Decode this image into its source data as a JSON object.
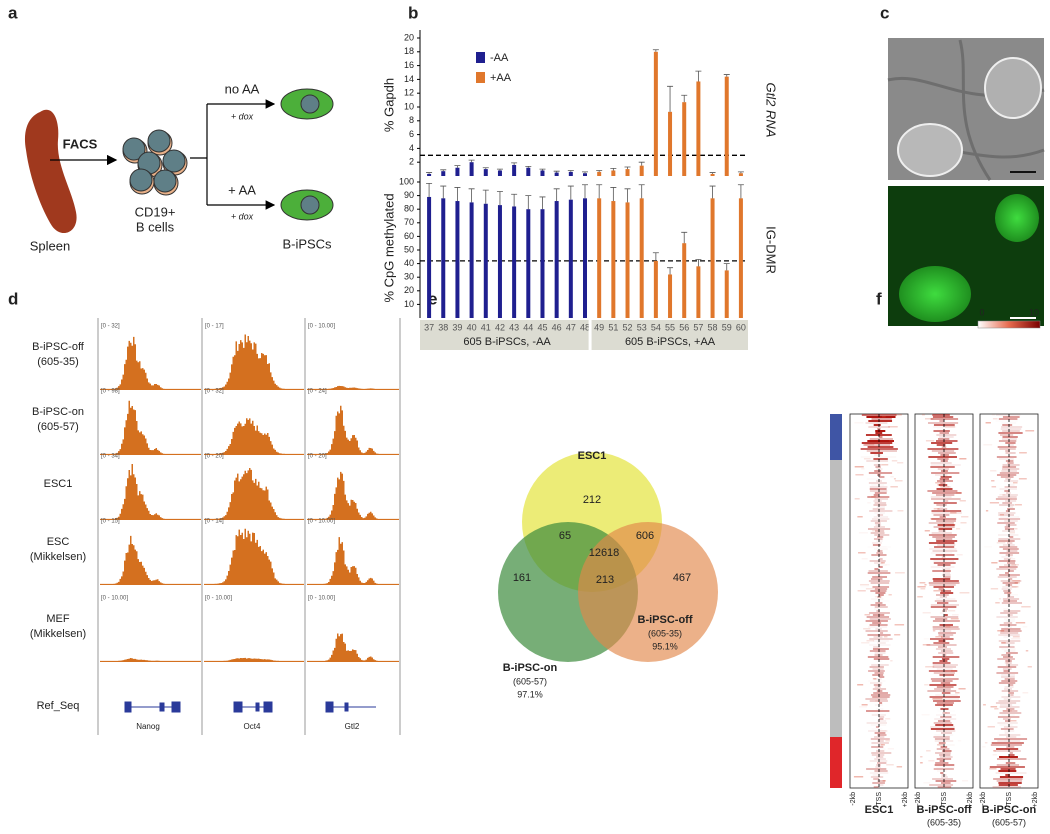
{
  "panel_labels": [
    "a",
    "b",
    "c",
    "d",
    "e",
    "f"
  ],
  "schematic": {
    "source": "Spleen",
    "sort": "FACS",
    "cells": [
      "CD19+",
      "B cells"
    ],
    "branches": [
      {
        "label": "no AA",
        "treatment": "+ dox"
      },
      {
        "label": "+ AA",
        "treatment": "+ dox"
      }
    ],
    "product": "B-iPSCs"
  },
  "chart_data": {
    "type": "bar",
    "categories": [
      "37",
      "38",
      "39",
      "40",
      "41",
      "42",
      "43",
      "44",
      "45",
      "46",
      "47",
      "48",
      "49",
      "51",
      "52",
      "53",
      "54",
      "55",
      "56",
      "57",
      "58",
      "59",
      "60"
    ],
    "series": [
      {
        "name": "-AA",
        "color": "#1f1f8f"
      },
      {
        "name": "+AA",
        "color": "#e0772c"
      }
    ],
    "groups": [
      "605 B-iPSCs, -AA",
      "605 B-iPSCs, +AA"
    ],
    "panels": [
      {
        "ylabel": "% Gapdh",
        "side_label": "Gtl2 RNA",
        "ylim": [
          0,
          20
        ],
        "yticks": [
          2,
          4,
          6,
          8,
          10,
          12,
          14,
          16,
          18,
          20
        ],
        "threshold": 3,
        "values": [
          [
            0.3,
            0.7,
            1.2,
            2.0,
            1.0,
            0.8,
            1.6,
            1.2,
            0.8,
            0.5,
            0.6,
            0.4,
            null,
            null,
            null,
            null,
            null,
            null,
            null,
            null,
            null,
            null,
            null
          ],
          [
            null,
            null,
            null,
            null,
            null,
            null,
            null,
            null,
            null,
            null,
            null,
            null,
            0.6,
            0.8,
            1.0,
            1.5,
            18.0,
            9.3,
            10.7,
            13.7,
            0.3,
            14.4,
            0.4
          ]
        ],
        "errors": [
          [
            0.2,
            0.2,
            0.3,
            0.3,
            0.2,
            0.2,
            0.3,
            0.2,
            0.2,
            0.2,
            0.2,
            0.2,
            null,
            null,
            null,
            null,
            null,
            null,
            null,
            null,
            null,
            null,
            null
          ],
          [
            null,
            null,
            null,
            null,
            null,
            null,
            null,
            null,
            null,
            null,
            null,
            null,
            0.2,
            0.3,
            0.3,
            0.5,
            0.3,
            3.7,
            1.0,
            1.5,
            0.2,
            0.3,
            0.2
          ]
        ]
      },
      {
        "ylabel": "% CpG methylated",
        "side_label": "IG-DMR",
        "ylim": [
          0,
          100
        ],
        "yticks": [
          10,
          20,
          30,
          40,
          50,
          60,
          70,
          80,
          90,
          100
        ],
        "threshold": 42,
        "values": [
          [
            89,
            88,
            86,
            85,
            84,
            83,
            82,
            80,
            80,
            86,
            87,
            88,
            null,
            null,
            null,
            null,
            null,
            null,
            null,
            null,
            null,
            null,
            null
          ],
          [
            null,
            null,
            null,
            null,
            null,
            null,
            null,
            null,
            null,
            null,
            null,
            null,
            88,
            86,
            85,
            88,
            42,
            32,
            55,
            38,
            88,
            35,
            88
          ]
        ],
        "errors": [
          [
            10,
            9,
            10,
            10,
            10,
            10,
            9,
            10,
            9,
            9,
            10,
            10,
            null,
            null,
            null,
            null,
            null,
            null,
            null,
            null,
            null,
            null,
            null
          ],
          [
            null,
            null,
            null,
            null,
            null,
            null,
            null,
            null,
            null,
            null,
            null,
            null,
            10,
            10,
            10,
            10,
            6,
            5,
            8,
            5,
            9,
            5,
            10
          ]
        ]
      }
    ]
  },
  "tracks": {
    "samples": [
      {
        "name": "B-iPSC-off",
        "detail": "(605-35)",
        "ranges": [
          "[0 - 32]",
          "[0 - 17]",
          "[0 - 10.00]"
        ]
      },
      {
        "name": "B-iPSC-on",
        "detail": "(605-57)",
        "ranges": [
          "[0 - 98]",
          "[0 - 32]",
          "[0 - 24]"
        ]
      },
      {
        "name": "ESC1",
        "ranges": [
          "[0 - 34]",
          "[0 - 20]",
          "[0 - 20]"
        ]
      },
      {
        "name": "ESC",
        "detail": "(Mikkelsen)",
        "ranges": [
          "[0 - 15]",
          "[0 - 14]",
          "[0 - 10.00]"
        ]
      },
      {
        "name": "MEF",
        "detail": "(Mikkelsen)",
        "ranges": [
          "[0 - 10.00]",
          "[0 - 10.00]",
          "[0 - 10.00]"
        ]
      }
    ],
    "ref_label": "Ref_Seq",
    "genes": [
      "Nanog",
      "Oct4",
      "Gtl2"
    ]
  },
  "venn": {
    "sets": [
      {
        "name": "ESC1"
      },
      {
        "name": "B-iPSC-on",
        "detail": "(605-57)",
        "percent": "97.1%"
      },
      {
        "name": "B-iPSC-off",
        "detail": "(605-35)",
        "percent": "95.1%"
      }
    ],
    "regions": {
      "esc1_only": 212,
      "esc1_on": 65,
      "esc1_off": 606,
      "all": 12618,
      "on_only": 161,
      "on_off": 213,
      "off_only": 467
    }
  },
  "heatmap": {
    "scale": {
      "min": 0,
      "max": 10
    },
    "x_labels": [
      "-2kb",
      "TSS",
      "+2kb"
    ],
    "columns": [
      {
        "name": "ESC1"
      },
      {
        "name": "B-iPSC-off",
        "detail": "(605-35)"
      },
      {
        "name": "B-iPSC-on",
        "detail": "(605-57)"
      }
    ]
  }
}
